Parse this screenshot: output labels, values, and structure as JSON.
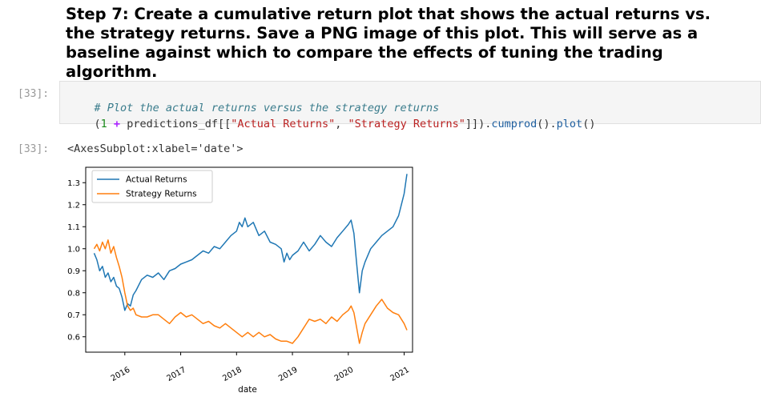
{
  "heading": "Step 7: Create a cumulative return plot that shows the actual returns vs. the strategy returns. Save a PNG image of this plot. This will serve as a baseline against which to compare the effects of tuning the trading algorithm.",
  "cell": {
    "in_prompt": "[33]:",
    "out_prompt": "[33]:",
    "code_line1": "# Plot the actual returns versus the strategy returns",
    "code_line2": {
      "t1": "(",
      "t2": "1",
      "t3": " + ",
      "t4": "predictions_df[[",
      "t5": "\"Actual Returns\"",
      "t6": ", ",
      "t7": "\"Strategy Returns\"",
      "t8": "]]).",
      "t9": "cumprod",
      "t10": "().",
      "t11": "plot",
      "t12": "()"
    },
    "output_text": "<AxesSubplot:xlabel='date'>"
  },
  "chart_data": {
    "type": "line",
    "xlabel": "date",
    "ylabel": "",
    "xlim": [
      2015.3,
      2021.15
    ],
    "ylim": [
      0.53,
      1.37
    ],
    "x_ticks": [
      2016,
      2017,
      2018,
      2019,
      2020,
      2021
    ],
    "x_tick_labels": [
      "2016",
      "2017",
      "2018",
      "2019",
      "2020",
      "2021"
    ],
    "y_ticks": [
      0.6,
      0.7,
      0.8,
      0.9,
      1.0,
      1.1,
      1.2,
      1.3
    ],
    "y_tick_labels": [
      "0.6",
      "0.7",
      "0.8",
      "0.9",
      "1.0",
      "1.1",
      "1.2",
      "1.3"
    ],
    "legend_position": "top-left",
    "series": [
      {
        "name": "Actual Returns",
        "color": "#1f77b4",
        "x": [
          2015.45,
          2015.5,
          2015.55,
          2015.6,
          2015.65,
          2015.7,
          2015.75,
          2015.8,
          2015.85,
          2015.9,
          2015.95,
          2016.0,
          2016.05,
          2016.1,
          2016.15,
          2016.2,
          2016.3,
          2016.4,
          2016.5,
          2016.6,
          2016.7,
          2016.8,
          2016.9,
          2017.0,
          2017.1,
          2017.2,
          2017.3,
          2017.4,
          2017.5,
          2017.6,
          2017.7,
          2017.8,
          2017.9,
          2018.0,
          2018.05,
          2018.1,
          2018.15,
          2018.2,
          2018.3,
          2018.4,
          2018.5,
          2018.6,
          2018.7,
          2018.8,
          2018.85,
          2018.9,
          2018.95,
          2019.0,
          2019.1,
          2019.2,
          2019.3,
          2019.4,
          2019.5,
          2019.6,
          2019.7,
          2019.8,
          2019.9,
          2020.0,
          2020.05,
          2020.1,
          2020.15,
          2020.2,
          2020.25,
          2020.3,
          2020.4,
          2020.5,
          2020.6,
          2020.7,
          2020.8,
          2020.9,
          2021.0,
          2021.05
        ],
        "y": [
          0.98,
          0.95,
          0.9,
          0.92,
          0.87,
          0.89,
          0.85,
          0.87,
          0.83,
          0.82,
          0.78,
          0.72,
          0.75,
          0.74,
          0.79,
          0.81,
          0.86,
          0.88,
          0.87,
          0.89,
          0.86,
          0.9,
          0.91,
          0.93,
          0.94,
          0.95,
          0.97,
          0.99,
          0.98,
          1.01,
          1.0,
          1.03,
          1.06,
          1.08,
          1.12,
          1.1,
          1.14,
          1.1,
          1.12,
          1.06,
          1.08,
          1.03,
          1.02,
          1.0,
          0.94,
          0.98,
          0.95,
          0.97,
          0.99,
          1.03,
          0.99,
          1.02,
          1.06,
          1.03,
          1.01,
          1.05,
          1.08,
          1.11,
          1.13,
          1.07,
          0.93,
          0.8,
          0.9,
          0.94,
          1.0,
          1.03,
          1.06,
          1.08,
          1.1,
          1.15,
          1.25,
          1.34
        ]
      },
      {
        "name": "Strategy Returns",
        "color": "#ff7f0e",
        "x": [
          2015.45,
          2015.5,
          2015.55,
          2015.6,
          2015.65,
          2015.7,
          2015.75,
          2015.8,
          2015.85,
          2015.9,
          2015.95,
          2016.0,
          2016.05,
          2016.1,
          2016.15,
          2016.2,
          2016.3,
          2016.4,
          2016.5,
          2016.6,
          2016.7,
          2016.8,
          2016.9,
          2017.0,
          2017.1,
          2017.2,
          2017.3,
          2017.4,
          2017.5,
          2017.6,
          2017.7,
          2017.8,
          2017.9,
          2018.0,
          2018.1,
          2018.2,
          2018.3,
          2018.4,
          2018.5,
          2018.6,
          2018.7,
          2018.8,
          2018.9,
          2019.0,
          2019.1,
          2019.2,
          2019.3,
          2019.4,
          2019.5,
          2019.6,
          2019.7,
          2019.8,
          2019.9,
          2020.0,
          2020.05,
          2020.1,
          2020.15,
          2020.2,
          2020.25,
          2020.3,
          2020.4,
          2020.5,
          2020.6,
          2020.7,
          2020.8,
          2020.9,
          2021.0,
          2021.05
        ],
        "y": [
          1.0,
          1.02,
          0.99,
          1.03,
          1.0,
          1.04,
          0.98,
          1.01,
          0.96,
          0.92,
          0.87,
          0.8,
          0.74,
          0.72,
          0.73,
          0.7,
          0.69,
          0.69,
          0.7,
          0.7,
          0.68,
          0.66,
          0.69,
          0.71,
          0.69,
          0.7,
          0.68,
          0.66,
          0.67,
          0.65,
          0.64,
          0.66,
          0.64,
          0.62,
          0.6,
          0.62,
          0.6,
          0.62,
          0.6,
          0.61,
          0.59,
          0.58,
          0.58,
          0.57,
          0.6,
          0.64,
          0.68,
          0.67,
          0.68,
          0.66,
          0.69,
          0.67,
          0.7,
          0.72,
          0.74,
          0.71,
          0.64,
          0.57,
          0.62,
          0.66,
          0.7,
          0.74,
          0.77,
          0.73,
          0.71,
          0.7,
          0.66,
          0.63
        ]
      }
    ]
  }
}
